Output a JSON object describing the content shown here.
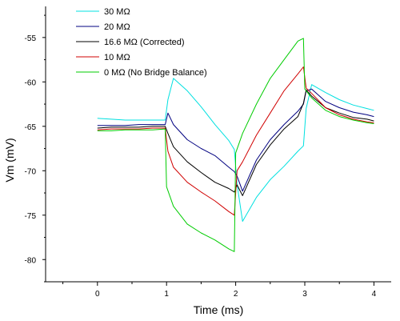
{
  "chart_data": {
    "type": "line",
    "title": "",
    "xlabel": "Time (ms)",
    "ylabel": "Vm (mV)",
    "xlim": [
      -0.75,
      4.25
    ],
    "ylim": [
      -82.5,
      -51.5
    ],
    "xticks": [
      0,
      1,
      2,
      3,
      4
    ],
    "xtick_labels": [
      "0",
      "1",
      "2",
      "3",
      "4"
    ],
    "yticks": [
      -80,
      -75,
      -70,
      -65,
      -60,
      -55
    ],
    "ytick_labels": [
      "-80",
      "-75",
      "-70",
      "-65",
      "-60",
      "-55"
    ],
    "grid": false,
    "legend_position": "top-left",
    "series": [
      {
        "name": "30 MΩ",
        "color": "#00e0e0",
        "x": [
          0,
          0.2,
          0.4,
          0.6,
          0.8,
          0.98,
          1.02,
          1.1,
          1.3,
          1.5,
          1.7,
          1.9,
          1.98,
          2.02,
          2.1,
          2.3,
          2.5,
          2.7,
          2.9,
          2.98,
          3.02,
          3.1,
          3.3,
          3.5,
          3.7,
          3.9,
          4.0
        ],
        "y": [
          -64.1,
          -64.2,
          -64.3,
          -64.3,
          -64.3,
          -64.3,
          -62.0,
          -59.6,
          -61.0,
          -62.8,
          -64.8,
          -66.6,
          -67.6,
          -71.5,
          -75.7,
          -73.0,
          -71.0,
          -69.5,
          -67.8,
          -67.2,
          -63.0,
          -60.3,
          -61.2,
          -62.0,
          -62.6,
          -63.0,
          -63.2
        ]
      },
      {
        "name": "20 MΩ",
        "color": "#000080",
        "x": [
          0,
          0.2,
          0.4,
          0.6,
          0.8,
          0.98,
          1.02,
          1.1,
          1.3,
          1.5,
          1.7,
          1.9,
          1.98,
          2.02,
          2.1,
          2.3,
          2.5,
          2.7,
          2.9,
          2.98,
          3.02,
          3.1,
          3.3,
          3.5,
          3.7,
          3.9,
          4.0
        ],
        "y": [
          -64.9,
          -64.9,
          -64.9,
          -64.8,
          -64.8,
          -64.8,
          -63.5,
          -64.8,
          -66.5,
          -67.5,
          -68.3,
          -69.6,
          -70.1,
          -70.6,
          -72.3,
          -68.8,
          -66.5,
          -64.8,
          -63.3,
          -62.5,
          -61.0,
          -60.8,
          -62.2,
          -62.9,
          -63.4,
          -63.7,
          -63.9
        ]
      },
      {
        "name": "16.6 MΩ (Corrected)",
        "color": "#000000",
        "x": [
          0,
          0.2,
          0.4,
          0.6,
          0.8,
          0.98,
          1.02,
          1.1,
          1.3,
          1.5,
          1.7,
          1.9,
          1.98,
          2.02,
          2.1,
          2.3,
          2.5,
          2.7,
          2.9,
          2.98,
          3.02,
          3.1,
          3.3,
          3.5,
          3.7,
          3.9,
          4.0
        ],
        "y": [
          -65.2,
          -65.1,
          -65.1,
          -65.1,
          -65.0,
          -65.0,
          -65.8,
          -67.3,
          -69.0,
          -70.2,
          -71.3,
          -72.0,
          -72.4,
          -71.6,
          -72.8,
          -69.3,
          -67.1,
          -65.3,
          -63.9,
          -62.4,
          -60.9,
          -61.6,
          -62.9,
          -63.5,
          -64.0,
          -64.2,
          -64.4
        ]
      },
      {
        "name": "10 MΩ",
        "color": "#d00000",
        "x": [
          0,
          0.2,
          0.4,
          0.6,
          0.8,
          0.98,
          1.02,
          1.1,
          1.3,
          1.5,
          1.7,
          1.9,
          1.98,
          2.02,
          2.1,
          2.3,
          2.5,
          2.7,
          2.9,
          2.98,
          3.02,
          3.1,
          3.3,
          3.5,
          3.7,
          3.9,
          4.0
        ],
        "y": [
          -65.4,
          -65.3,
          -65.3,
          -65.3,
          -65.2,
          -65.2,
          -67.8,
          -69.6,
          -71.3,
          -72.4,
          -73.4,
          -74.6,
          -75.0,
          -70.0,
          -69.0,
          -66.0,
          -63.5,
          -61.0,
          -59.1,
          -58.3,
          -60.7,
          -61.3,
          -62.9,
          -63.7,
          -64.2,
          -64.5,
          -64.6
        ]
      },
      {
        "name": "0 MΩ (No Bridge Balance)",
        "color": "#00cc00",
        "x": [
          0,
          0.2,
          0.4,
          0.6,
          0.8,
          0.98,
          1.0,
          1.1,
          1.3,
          1.5,
          1.7,
          1.9,
          1.98,
          2.0,
          2.1,
          2.3,
          2.5,
          2.7,
          2.9,
          2.98,
          3.0,
          3.1,
          3.3,
          3.5,
          3.7,
          3.9,
          4.0
        ],
        "y": [
          -65.5,
          -65.5,
          -65.4,
          -65.4,
          -65.4,
          -65.3,
          -71.8,
          -74.0,
          -76.0,
          -77.0,
          -77.8,
          -78.8,
          -79.1,
          -68.0,
          -65.8,
          -62.5,
          -59.6,
          -57.5,
          -55.4,
          -55.1,
          -60.8,
          -61.8,
          -63.2,
          -63.9,
          -64.3,
          -64.6,
          -64.7
        ]
      }
    ]
  }
}
